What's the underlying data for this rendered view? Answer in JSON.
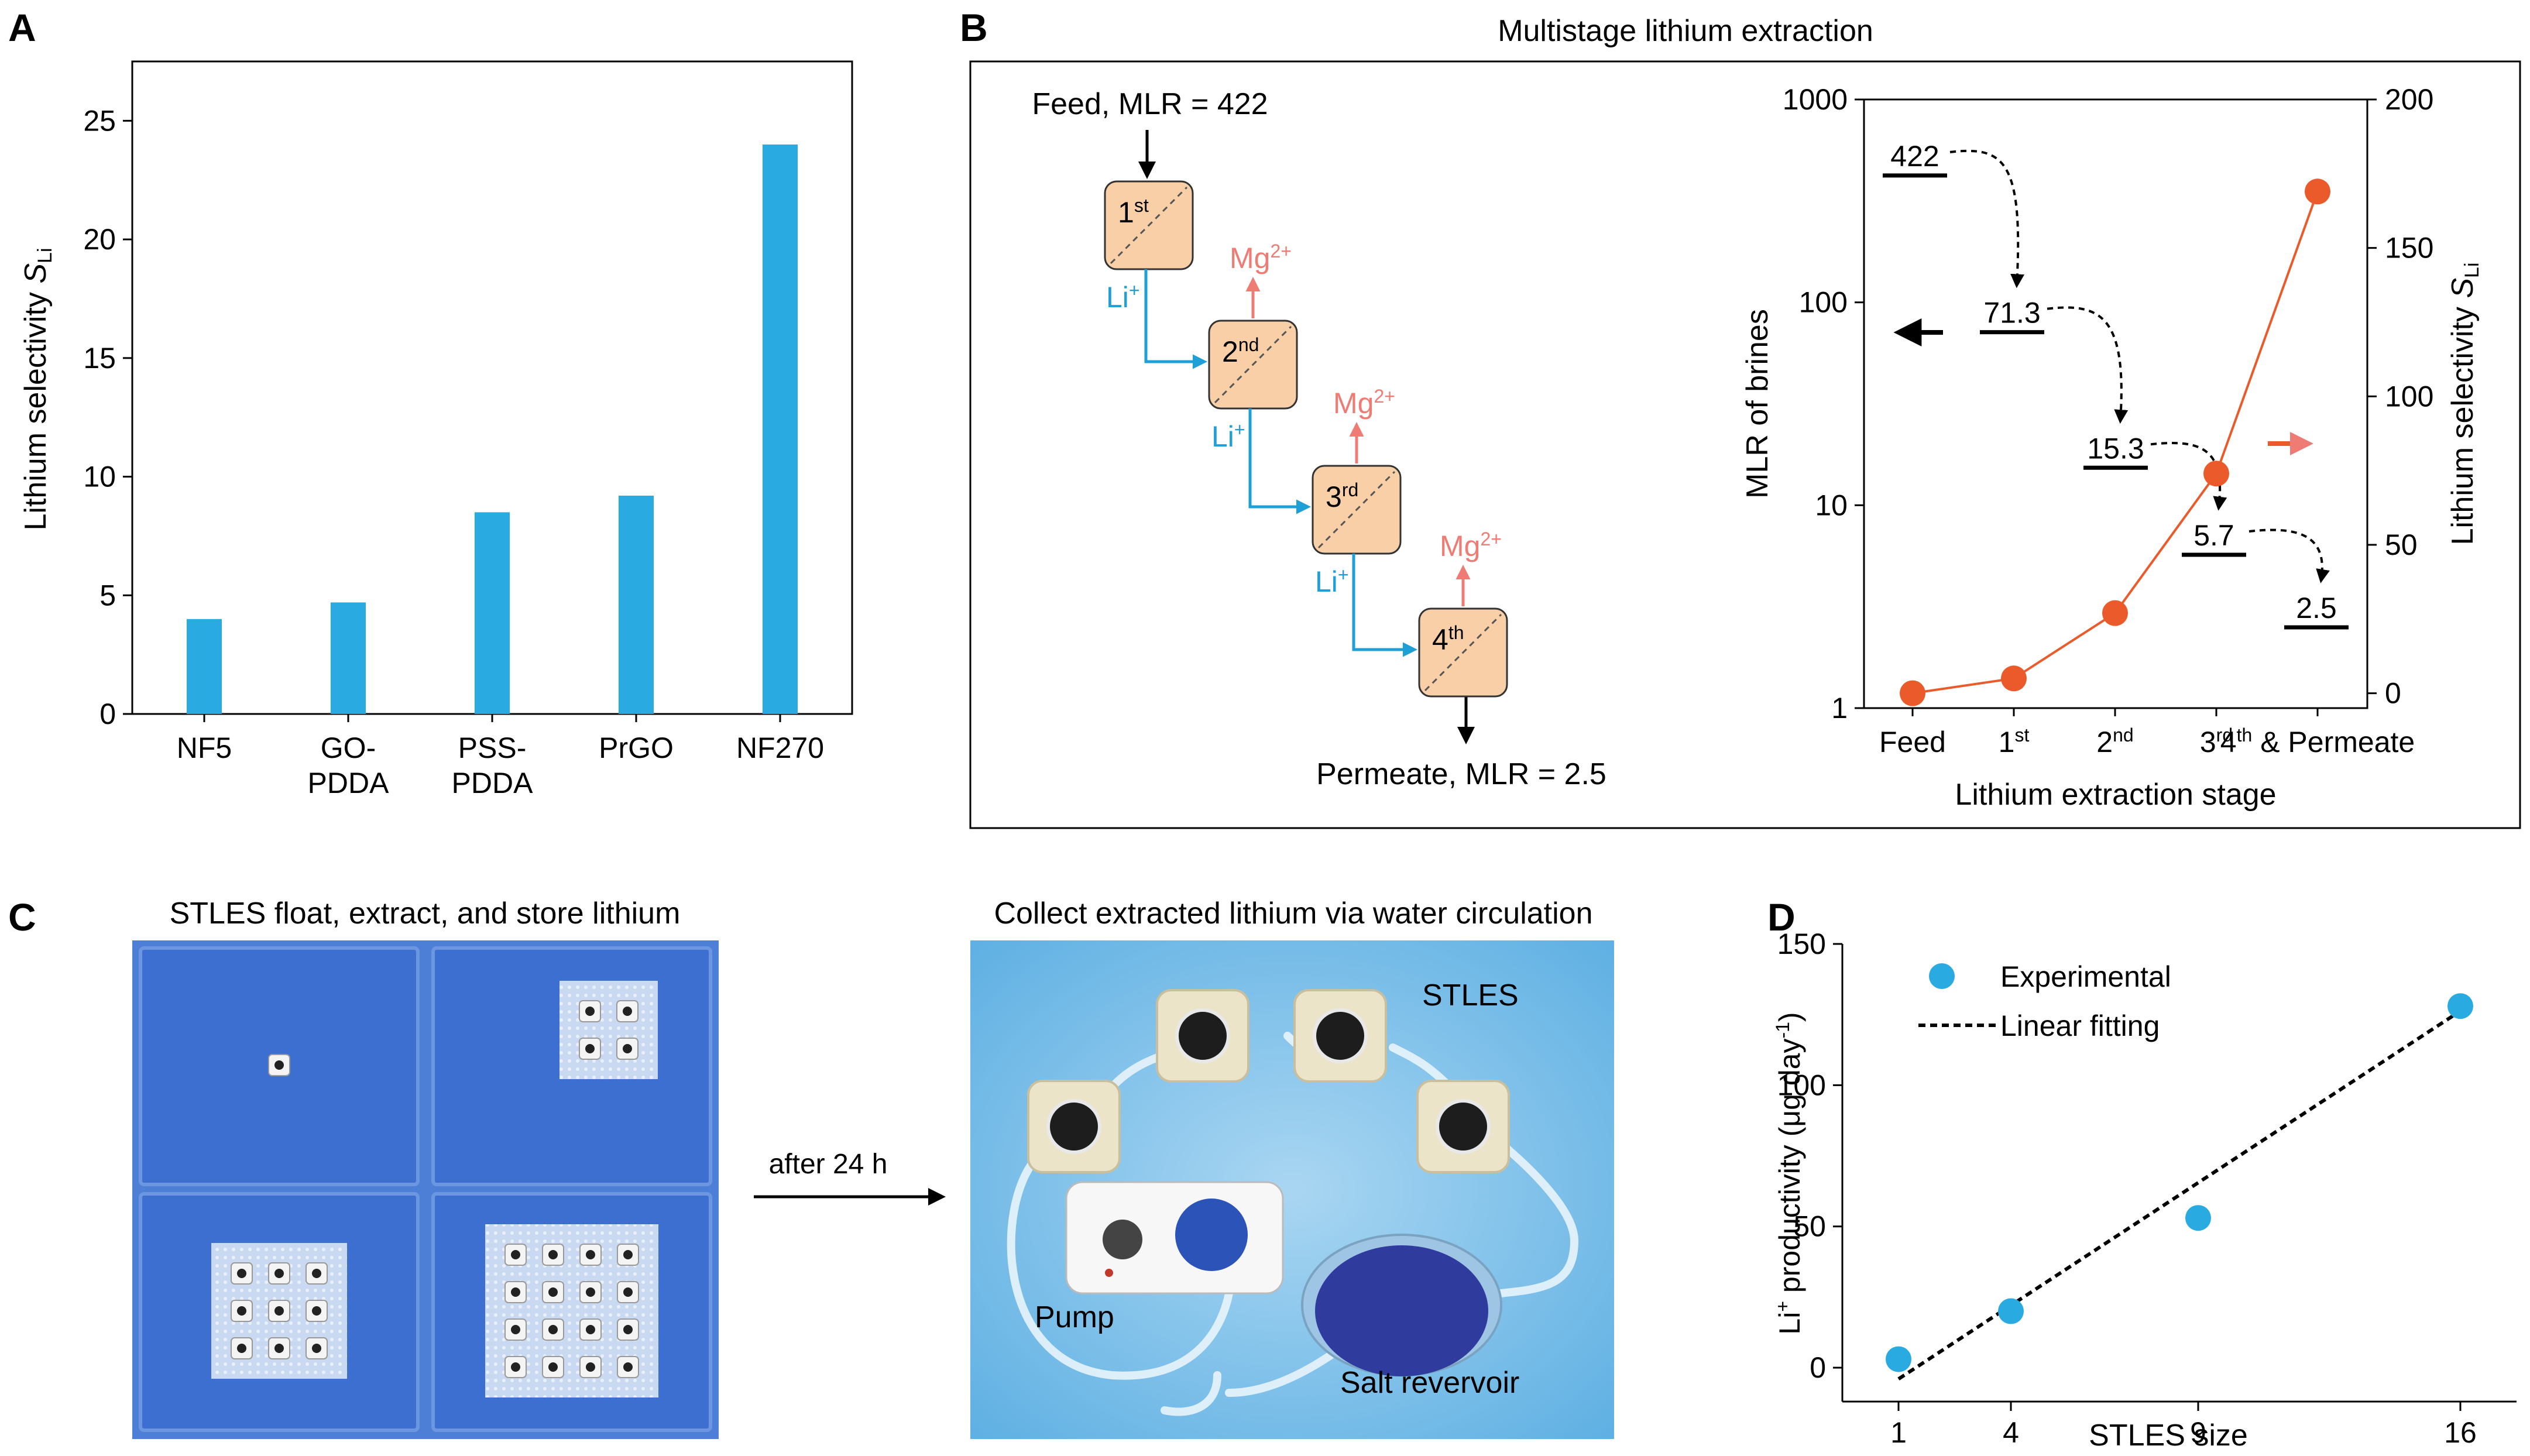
{
  "panels": {
    "A": {
      "label": "A"
    },
    "B": {
      "label": "B",
      "title": "Multistage lithium extraction"
    },
    "C": {
      "label": "C"
    },
    "D": {
      "label": "D"
    }
  },
  "colors": {
    "bar": "#29ABE2",
    "li_blue": "#1E9FD6",
    "mg_red": "#EE7B74",
    "orange": "#EA5A2A",
    "stage_fill": "#F8CFA6",
    "photo_blue": "#3D6FD0",
    "point_blue": "#29ABE2"
  },
  "diagram": {
    "feed_label": "Feed, MLR = 422",
    "permeate_label": "Permeate, MLR = 2.5",
    "stages": [
      {
        "num": "1",
        "sup": "st"
      },
      {
        "num": "2",
        "sup": "nd"
      },
      {
        "num": "3",
        "sup": "rd"
      },
      {
        "num": "4",
        "sup": "th"
      }
    ],
    "li_label": "Li",
    "li_sup": "+",
    "mg_label": "Mg",
    "mg_sup": "2+"
  },
  "photos": {
    "left_title": "STLES float, extract, and store lithium",
    "right_title": "Collect extracted lithium via water circulation",
    "arrow_label": "after 24 h",
    "stles_label": "STLES",
    "pump_label": "Pump",
    "salt_label": "Salt revervoir",
    "tray_grids": [
      1,
      2,
      3,
      4
    ]
  },
  "chart_data": [
    {
      "panel": "A",
      "type": "bar",
      "categories": [
        "NF5",
        "GO-\nPDDA",
        "PSS-\nPDDA",
        "PrGO",
        "NF270"
      ],
      "values": [
        4.0,
        4.7,
        8.5,
        9.2,
        24.0
      ],
      "ylabel": "Lithium selectivity ",
      "ylabel_italic": "S",
      "ylabel_sub": "Li",
      "ylim": [
        0,
        27.5
      ],
      "yticks": [
        0,
        5,
        10,
        15,
        20,
        25
      ]
    },
    {
      "panel": "B",
      "type": "line",
      "categories": [
        "Feed",
        "1",
        "2",
        "3",
        "4"
      ],
      "category_sups": [
        "",
        "st",
        "nd",
        "rd",
        "th"
      ],
      "category_suffix": [
        "",
        "",
        "",
        "",
        " & Permeate"
      ],
      "xlabel": "Lithium extraction stage",
      "left_axis": {
        "label": "MLR of brines",
        "scale": "log",
        "ylim": [
          1,
          1000
        ],
        "ticks": [
          1,
          10,
          100,
          1000
        ]
      },
      "right_axis": {
        "label": "Lithium selectivity ",
        "label_italic": "S",
        "label_sub": "Li",
        "ylim": [
          -5,
          200
        ],
        "ticks": [
          0,
          50,
          100,
          150,
          200
        ]
      },
      "mlr_values": [
        422,
        71.3,
        15.3,
        5.7,
        2.5
      ],
      "mlr_labels": [
        "422",
        "71.3",
        "15.3",
        "5.7",
        "2.5"
      ],
      "selectivity_values": [
        0,
        5,
        27,
        74,
        169
      ]
    },
    {
      "panel": "D",
      "type": "scatter",
      "x": [
        1,
        4,
        9,
        16
      ],
      "y": [
        3,
        20,
        53,
        128
      ],
      "series": [
        {
          "name": "Experimental"
        },
        {
          "name": "Linear fitting",
          "line_endpoints": {
            "x": [
              1,
              16.2
            ],
            "y": [
              -4,
              128
            ]
          }
        }
      ],
      "xlabel": "STLES size",
      "ylabel_parts": [
        "Li",
        "+",
        " productivity (μg day",
        "-1",
        ")"
      ],
      "xticks": [
        1,
        4,
        9,
        16
      ],
      "yticks": [
        0,
        50,
        100,
        150
      ],
      "xlim": [
        -0.5,
        17.5
      ],
      "ylim": [
        -12,
        150
      ]
    }
  ]
}
